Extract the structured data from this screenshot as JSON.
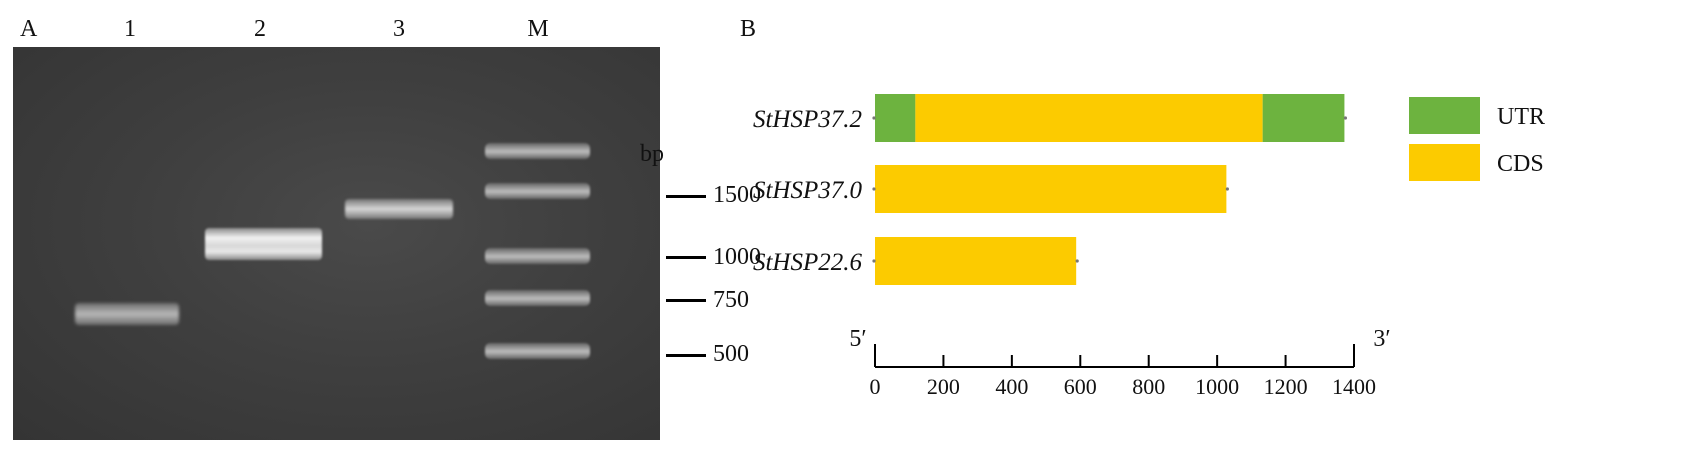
{
  "panel_a": {
    "label": "A",
    "lanes": [
      "1",
      "2",
      "3",
      "M"
    ],
    "unit": "bp",
    "marker_sizes": [
      "1500",
      "1000",
      "750",
      "500"
    ]
  },
  "panel_b": {
    "label": "B",
    "five_prime": "5′",
    "three_prime": "3′",
    "legend": [
      {
        "label": "UTR",
        "color": "#6db33f"
      },
      {
        "label": "CDS",
        "color": "#fccb00"
      }
    ]
  },
  "chart_data": {
    "type": "bar",
    "orientation": "horizontal",
    "categories": [
      "StHSP37.2",
      "StHSP37.0",
      "StHSP22.6"
    ],
    "segments": [
      [
        {
          "type": "UTR",
          "start": 0,
          "end": 118
        },
        {
          "type": "CDS",
          "start": 118,
          "end": 1133
        },
        {
          "type": "UTR",
          "start": 1133,
          "end": 1372
        }
      ],
      [
        {
          "type": "CDS",
          "start": 0,
          "end": 1027
        }
      ],
      [
        {
          "type": "CDS",
          "start": 0,
          "end": 588
        }
      ]
    ],
    "xlim": [
      0,
      1400
    ],
    "xticks": [
      "0",
      "200",
      "400",
      "600",
      "800",
      "1000",
      "1200",
      "1400"
    ],
    "colors": {
      "UTR": "#6db33f",
      "CDS": "#fccb00"
    },
    "legend_position": "right"
  }
}
